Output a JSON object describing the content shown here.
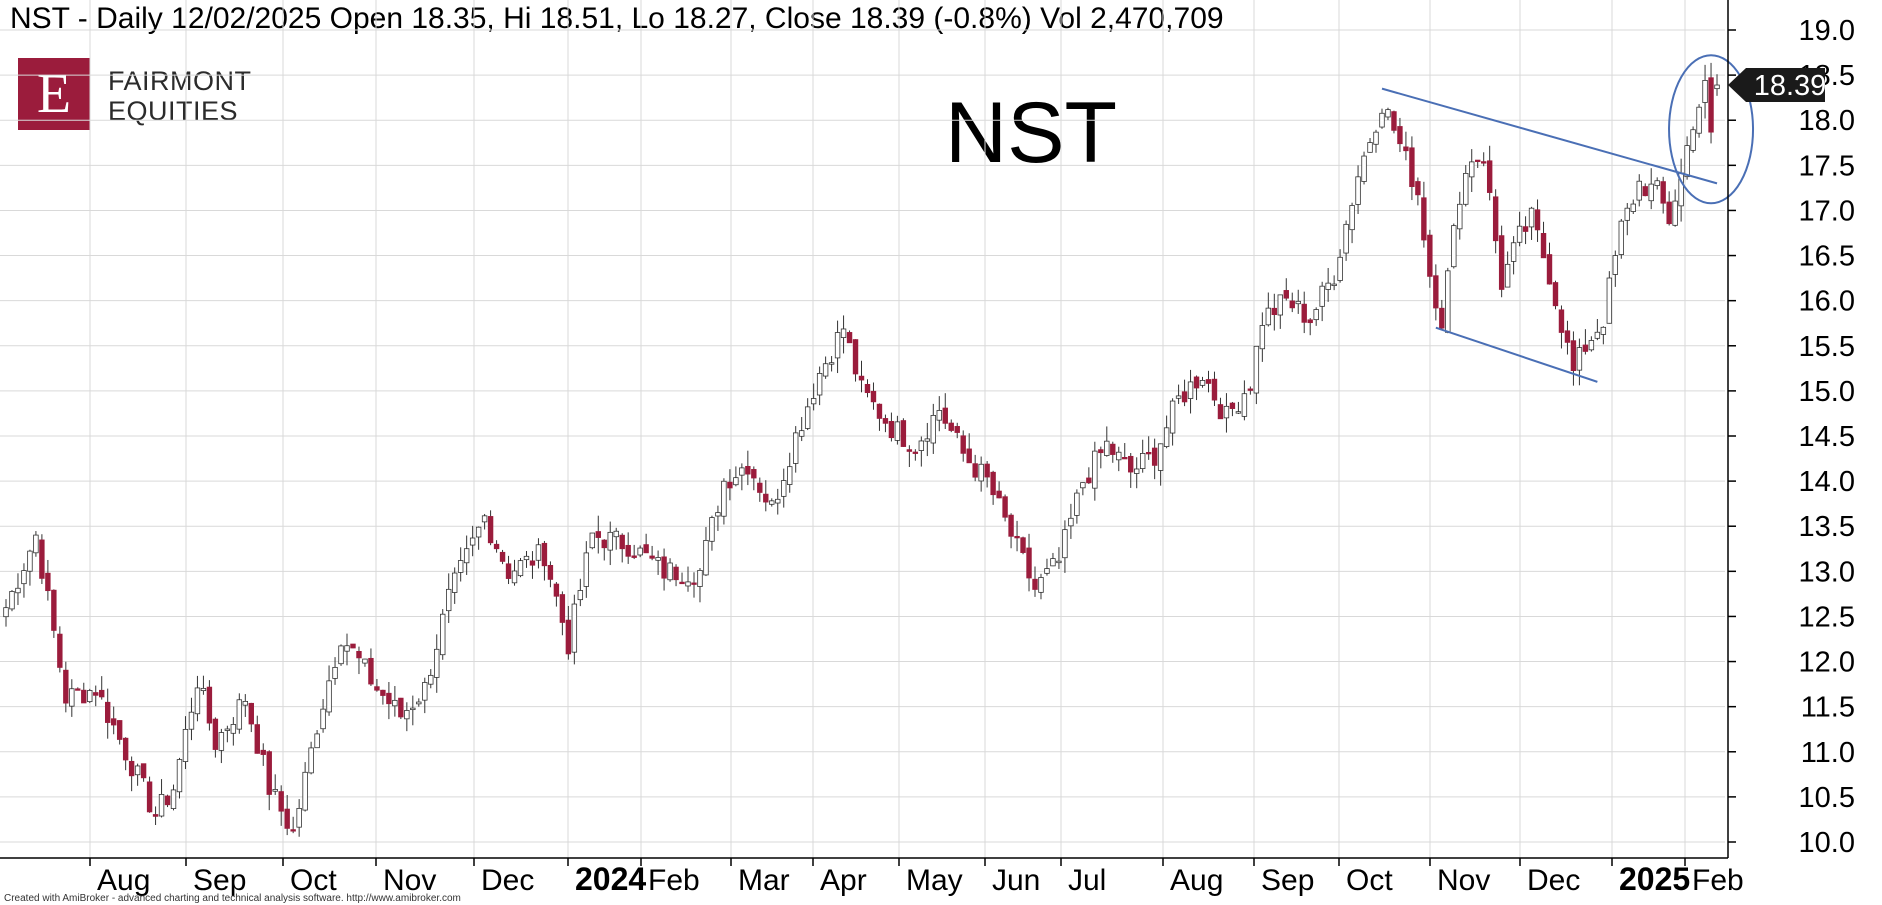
{
  "header": {
    "text": "NST - Daily 12/02/2025 Open 18.35, Hi 18.51, Lo 18.27, Close 18.39 (-0.8%) Vol 2,470,709"
  },
  "logo": {
    "letter": "E",
    "line1": "FAIRMONT",
    "line2": "EQUITIES",
    "color": "#9b1c3c"
  },
  "big_ticker": "NST",
  "footer": "Created with AmiBroker - advanced charting and technical analysis software. http://www.amibroker.com",
  "colors": {
    "up": "#ffffff",
    "down": "#9b1c3c",
    "outline": "#333333",
    "trend": "#4a6fb5",
    "grid": "#d9d9d9"
  },
  "chart_data": {
    "type": "candlestick",
    "ticker": "NST",
    "timeframe": "Daily",
    "last": {
      "date": "12/02/2025",
      "open": 18.35,
      "high": 18.51,
      "low": 18.27,
      "close": 18.39,
      "change_pct": -0.8,
      "volume": 2470709
    },
    "price_label": "18.39",
    "ylim": [
      9.8,
      19.3
    ],
    "y_ticks": [
      "10.0",
      "10.5",
      "11.0",
      "11.5",
      "12.0",
      "12.5",
      "13.0",
      "13.5",
      "14.0",
      "14.5",
      "15.0",
      "15.5",
      "16.0",
      "16.5",
      "17.0",
      "17.5",
      "18.0",
      "18.5",
      "19.0"
    ],
    "x_ticks": [
      {
        "label": "Aug",
        "bold": false
      },
      {
        "label": "Sep",
        "bold": false
      },
      {
        "label": "Oct",
        "bold": false
      },
      {
        "label": "Nov",
        "bold": false
      },
      {
        "label": "Dec",
        "bold": false
      },
      {
        "label": "2024",
        "bold": true
      },
      {
        "label": "Feb",
        "bold": false
      },
      {
        "label": "Mar",
        "bold": false
      },
      {
        "label": "Apr",
        "bold": false
      },
      {
        "label": "May",
        "bold": false
      },
      {
        "label": "Jun",
        "bold": false
      },
      {
        "label": "Jul",
        "bold": false
      },
      {
        "label": "Aug",
        "bold": false
      },
      {
        "label": "Sep",
        "bold": false
      },
      {
        "label": "Oct",
        "bold": false
      },
      {
        "label": "Nov",
        "bold": false
      },
      {
        "label": "Dec",
        "bold": false
      },
      {
        "label": "2025",
        "bold": true
      },
      {
        "label": "Feb",
        "bold": false
      }
    ],
    "price_path": [
      [
        0,
        12.6
      ],
      [
        5,
        13.4
      ],
      [
        10,
        11.6
      ],
      [
        15,
        11.7
      ],
      [
        20,
        11.0
      ],
      [
        25,
        10.3
      ],
      [
        28,
        10.6
      ],
      [
        32,
        11.8
      ],
      [
        35,
        11.1
      ],
      [
        40,
        11.6
      ],
      [
        44,
        10.6
      ],
      [
        48,
        10.1
      ],
      [
        52,
        11.3
      ],
      [
        56,
        12.3
      ],
      [
        62,
        11.7
      ],
      [
        66,
        11.4
      ],
      [
        70,
        11.7
      ],
      [
        74,
        12.7
      ],
      [
        80,
        13.6
      ],
      [
        84,
        13.0
      ],
      [
        90,
        13.2
      ],
      [
        94,
        12.2
      ],
      [
        98,
        13.4
      ],
      [
        104,
        13.3
      ],
      [
        110,
        13.0
      ],
      [
        116,
        13.0
      ],
      [
        120,
        14.0
      ],
      [
        124,
        14.2
      ],
      [
        128,
        13.7
      ],
      [
        132,
        14.5
      ],
      [
        136,
        15.2
      ],
      [
        140,
        15.7
      ],
      [
        143,
        15.0
      ],
      [
        148,
        14.6
      ],
      [
        152,
        14.4
      ],
      [
        156,
        14.8
      ],
      [
        160,
        14.3
      ],
      [
        164,
        14.0
      ],
      [
        168,
        13.4
      ],
      [
        172,
        12.8
      ],
      [
        176,
        13.1
      ],
      [
        180,
        14.0
      ],
      [
        184,
        14.4
      ],
      [
        188,
        14.1
      ],
      [
        192,
        14.3
      ],
      [
        196,
        14.9
      ],
      [
        200,
        15.2
      ],
      [
        204,
        14.7
      ],
      [
        208,
        15.1
      ],
      [
        210,
        15.8
      ],
      [
        214,
        16.0
      ],
      [
        218,
        15.8
      ],
      [
        222,
        16.3
      ],
      [
        226,
        17.4
      ],
      [
        230,
        18.2
      ],
      [
        232,
        17.9
      ],
      [
        236,
        17.2
      ],
      [
        238,
        16.3
      ],
      [
        240,
        15.8
      ],
      [
        243,
        17.2
      ],
      [
        245,
        17.6
      ],
      [
        247,
        17.6
      ],
      [
        250,
        16.2
      ],
      [
        253,
        16.7
      ],
      [
        255,
        16.9
      ],
      [
        258,
        16.3
      ],
      [
        262,
        15.2
      ],
      [
        264,
        15.5
      ],
      [
        267,
        15.8
      ],
      [
        270,
        16.8
      ],
      [
        273,
        17.3
      ],
      [
        276,
        17.2
      ],
      [
        278,
        16.9
      ],
      [
        280,
        17.4
      ],
      [
        282,
        18.0
      ],
      [
        284,
        18.35
      ],
      [
        285,
        17.8
      ],
      [
        286,
        18.4
      ]
    ],
    "trendlines": [
      {
        "name": "upper",
        "from": [
          230,
          18.35
        ],
        "to": [
          286,
          17.3
        ]
      },
      {
        "name": "lower",
        "from": [
          239,
          15.7
        ],
        "to": [
          266,
          15.1
        ]
      }
    ],
    "highlight_circle": {
      "center": [
        285,
        17.9
      ],
      "note": "breakout"
    }
  }
}
